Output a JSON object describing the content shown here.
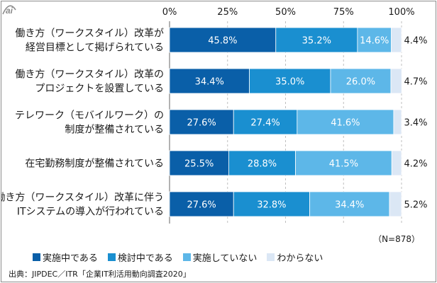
{
  "chart_data": {
    "type": "bar",
    "orientation": "horizontal",
    "stacked": true,
    "xlim": [
      0,
      100
    ],
    "ticks": [
      "0%",
      "25%",
      "50%",
      "75%",
      "100%"
    ],
    "categories": [
      [
        "働き方（ワークスタイル）改革が",
        "経営目標として掲げられている"
      ],
      [
        "働き方（ワークスタイル）改革の",
        "プロジェクトを設置している"
      ],
      [
        "テレワーク（モバイルワーク）の",
        "制度が整備されている"
      ],
      [
        "在宅勤務制度が整備されている"
      ],
      [
        "働き方（ワークスタイル）改革に伴う",
        "ITシステムの導入が行われている"
      ]
    ],
    "series": [
      {
        "name": "実施中である",
        "color": "#0a5fa8",
        "values": [
          45.8,
          34.4,
          27.6,
          25.5,
          27.6
        ],
        "labels": [
          "45.8%",
          "34.4%",
          "27.6%",
          "25.5%",
          "27.6%"
        ]
      },
      {
        "name": "検討中である",
        "color": "#1a8fd0",
        "values": [
          35.2,
          35.0,
          27.4,
          28.8,
          32.8
        ],
        "labels": [
          "35.2%",
          "35.0%",
          "27.4%",
          "28.8%",
          "32.8%"
        ]
      },
      {
        "name": "実施していない",
        "color": "#5db7e8",
        "values": [
          14.6,
          26.0,
          41.6,
          41.5,
          34.4
        ],
        "labels": [
          "14.6%",
          "26.0%",
          "41.6%",
          "41.5%",
          "34.4%"
        ]
      },
      {
        "name": "わからない",
        "color": "#dbe7f5",
        "values": [
          4.4,
          4.7,
          3.4,
          4.2,
          5.2
        ],
        "labels": [
          "4.4%",
          "4.7%",
          "3.4%",
          "4.2%",
          "5.2%"
        ]
      }
    ]
  },
  "note": "（N=878）",
  "source": "出典：JIPDEC／ITR「企業IT利活用動向調査2020」",
  "logo_text": "ai"
}
